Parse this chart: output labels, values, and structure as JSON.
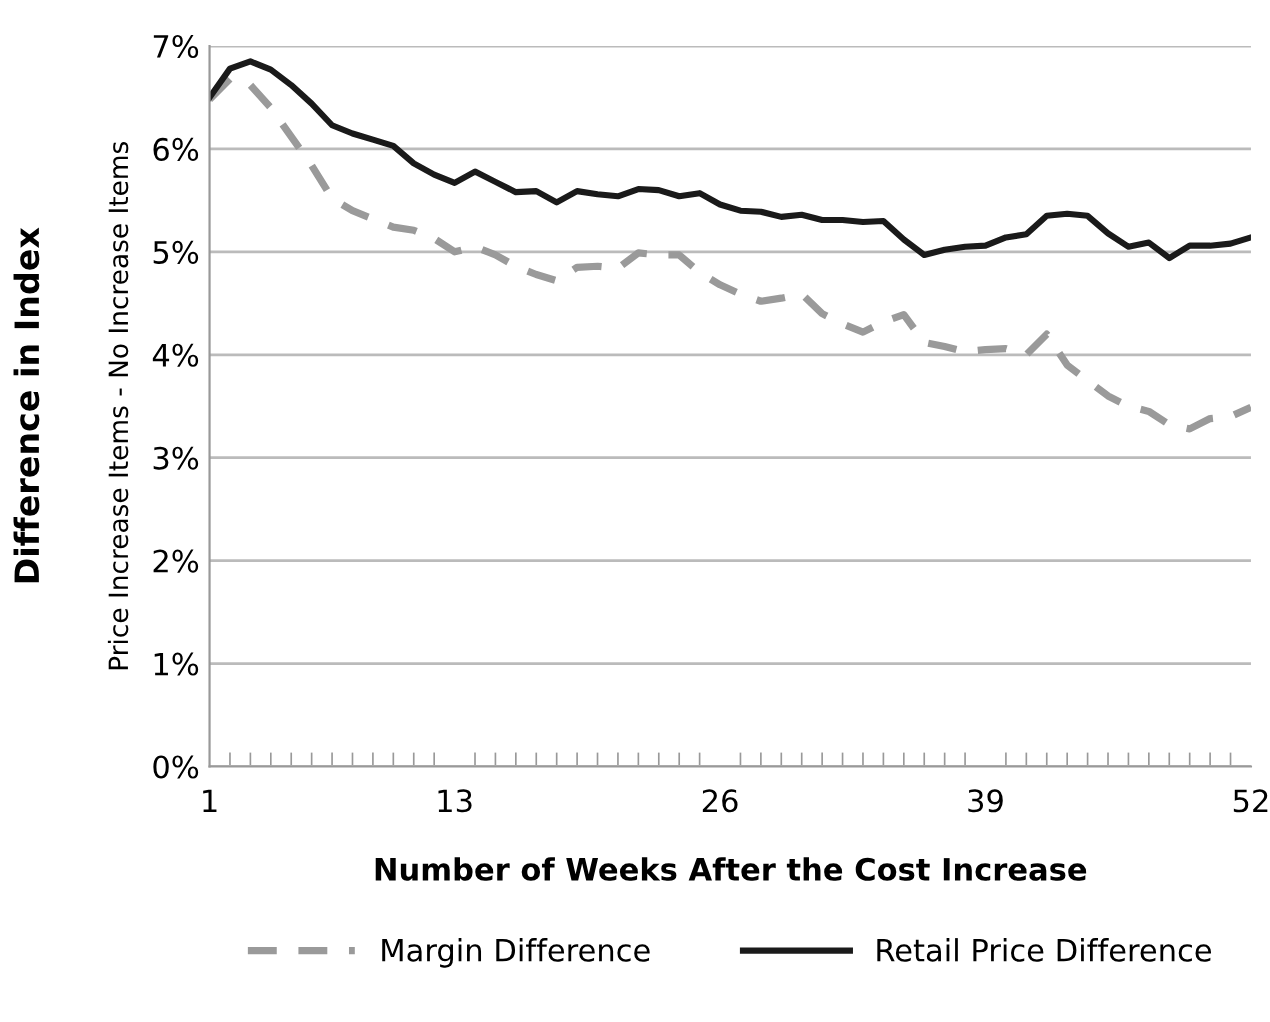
{
  "chart_data": {
    "type": "line",
    "ylabel": "Difference in Index",
    "annotations": [
      "Price Increase Items - No Increase Items"
    ],
    "xlabel": "Number of Weeks After the Cost Increase",
    "x": [
      1,
      2,
      3,
      4,
      5,
      6,
      7,
      8,
      9,
      10,
      11,
      12,
      13,
      14,
      15,
      16,
      17,
      18,
      19,
      20,
      21,
      22,
      23,
      24,
      25,
      26,
      27,
      28,
      29,
      30,
      31,
      32,
      33,
      34,
      35,
      36,
      37,
      38,
      39,
      40,
      41,
      42,
      43,
      44,
      45,
      46,
      47,
      48,
      49,
      50,
      51,
      52
    ],
    "series": [
      {
        "name": "Margin Difference",
        "color": "#9a9a9a",
        "line_style": "dashed",
        "values": [
          6.48,
          6.68,
          6.62,
          6.4,
          6.12,
          5.84,
          5.52,
          5.4,
          5.32,
          5.24,
          5.21,
          5.13,
          5.0,
          5.05,
          4.97,
          4.86,
          4.78,
          4.72,
          4.85,
          4.86,
          4.84,
          4.99,
          4.97,
          4.97,
          4.8,
          4.68,
          4.59,
          4.52,
          4.55,
          4.59,
          4.4,
          4.3,
          4.22,
          4.32,
          4.39,
          4.12,
          4.08,
          4.03,
          4.05,
          4.06,
          4.0,
          4.2,
          3.9,
          3.75,
          3.6,
          3.5,
          3.45,
          3.32,
          3.28,
          3.38,
          3.4,
          3.49
        ]
      },
      {
        "name": "Retail Price Difference",
        "color": "#1a1a1a",
        "line_style": "solid",
        "values": [
          6.5,
          6.78,
          6.85,
          6.77,
          6.62,
          6.44,
          6.23,
          6.15,
          6.09,
          6.03,
          5.86,
          5.75,
          5.67,
          5.78,
          5.68,
          5.58,
          5.59,
          5.48,
          5.59,
          5.56,
          5.54,
          5.61,
          5.6,
          5.54,
          5.57,
          5.46,
          5.4,
          5.39,
          5.34,
          5.36,
          5.31,
          5.31,
          5.29,
          5.3,
          5.12,
          4.97,
          5.02,
          5.05,
          5.06,
          5.14,
          5.17,
          5.35,
          5.37,
          5.35,
          5.18,
          5.05,
          5.09,
          4.94,
          5.06,
          5.06,
          5.08,
          5.14
        ]
      }
    ],
    "xlim": [
      1,
      52
    ],
    "xticks": [
      1,
      13,
      26,
      39,
      52
    ],
    "ylim": [
      0,
      7
    ],
    "yticks": [
      {
        "value": 0,
        "label": "0%"
      },
      {
        "value": 1,
        "label": "1%"
      },
      {
        "value": 2,
        "label": "2%"
      },
      {
        "value": 3,
        "label": "3%"
      },
      {
        "value": 4,
        "label": "4%"
      },
      {
        "value": 5,
        "label": "5%"
      },
      {
        "value": 6,
        "label": "6%"
      },
      {
        "value": 7,
        "label": "7%"
      }
    ],
    "grid": "y",
    "legend": "bottom"
  }
}
